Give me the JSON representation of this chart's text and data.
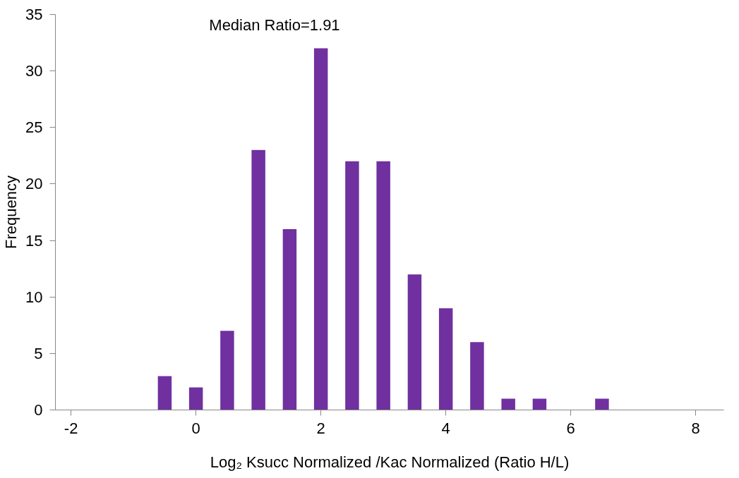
{
  "chart_data": {
    "type": "bar",
    "xlabel": "Log₂ Ksucc Normalized /Kac Normalized (Ratio H/L)",
    "ylabel": "Frequency",
    "annotations": [
      "Median Ratio=1.91"
    ],
    "x": [
      -0.5,
      0,
      0.5,
      1,
      1.5,
      2,
      2.5,
      3,
      3.5,
      4,
      4.5,
      5,
      5.5,
      6.5
    ],
    "values": [
      3,
      2,
      7,
      23,
      16,
      32,
      22,
      22,
      12,
      9,
      6,
      1,
      1,
      1
    ],
    "color": "#7030a0",
    "xlim": [
      -2.25,
      8.45
    ],
    "xticks": [
      -2,
      0,
      2,
      4,
      6,
      8
    ],
    "ylim": [
      0,
      35
    ],
    "yticks": [
      0,
      5,
      10,
      15,
      20,
      25,
      30,
      35
    ],
    "grid": false
  }
}
